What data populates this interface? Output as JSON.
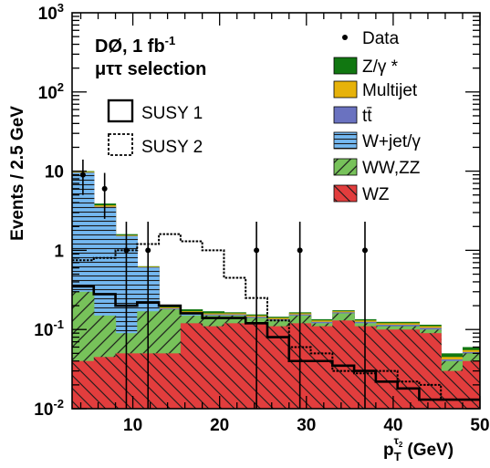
{
  "chart_data": {
    "type": "histogram",
    "y_scale": "log",
    "ylabel": "Events / 2.5 GeV",
    "xlabel": "p",
    "xlabel_sub": "T",
    "xlabel_sup_main": "τ",
    "xlabel_sup_sub": "2",
    "xlabel_unit": "(GeV)",
    "xlim": [
      3,
      50
    ],
    "ylim": [
      0.01,
      1000
    ],
    "x_ticks": [
      "10",
      "20",
      "30",
      "40",
      "50"
    ],
    "x_tick_values": [
      10,
      20,
      30,
      40,
      50
    ],
    "y_ticks": [
      {
        "base": "10",
        "exp": "-2",
        "value": 0.01
      },
      {
        "base": "10",
        "exp": "-1",
        "value": 0.1
      },
      {
        "base": "1",
        "exp": "",
        "value": 1
      },
      {
        "base": "10",
        "exp": "",
        "value": 10
      },
      {
        "base": "10",
        "exp": "2",
        "value": 100
      },
      {
        "base": "10",
        "exp": "3",
        "value": 1000
      }
    ],
    "annotations": {
      "experiment": "DØ, 1 fb",
      "experiment_sup": "-1",
      "selection": "μττ selection"
    },
    "bin_edges": [
      3,
      5.5,
      8,
      10.5,
      13,
      15.5,
      18,
      20.5,
      23,
      25.5,
      28,
      30.5,
      33,
      35.5,
      38,
      40.5,
      43,
      45.5,
      48,
      50
    ],
    "stack_order": [
      "WZ",
      "WW,ZZ",
      "W+jet/γ",
      "tt̄",
      "Multijet",
      "Z/γ *"
    ],
    "stacked_totals": [
      {
        "name": "WZ",
        "values": [
          0.04,
          0.045,
          0.05,
          0.05,
          0.05,
          0.12,
          0.11,
          0.12,
          0.12,
          0.11,
          0.12,
          0.11,
          0.13,
          0.11,
          0.1,
          0.1,
          0.09,
          0.03,
          0.04
        ]
      },
      {
        "name": "WW,ZZ",
        "values": [
          0.3,
          0.15,
          0.09,
          0.17,
          0.18,
          0.15,
          0.15,
          0.15,
          0.14,
          0.13,
          0.15,
          0.12,
          0.16,
          0.12,
          0.11,
          0.11,
          0.1,
          0.04,
          0.05
        ]
      },
      {
        "name": "W+jet/γ",
        "values": [
          9.5,
          3.5,
          1.5,
          0.6,
          0.18,
          0.16,
          0.15,
          0.15,
          0.14,
          0.13,
          0.15,
          0.12,
          0.16,
          0.12,
          0.11,
          0.11,
          0.1,
          0.04,
          0.05
        ]
      },
      {
        "name": "tt̄",
        "values": [
          9.6,
          3.55,
          1.52,
          0.61,
          0.185,
          0.165,
          0.155,
          0.155,
          0.145,
          0.135,
          0.155,
          0.125,
          0.165,
          0.125,
          0.115,
          0.115,
          0.105,
          0.042,
          0.052
        ]
      },
      {
        "name": "Multijet",
        "values": [
          9.8,
          3.7,
          1.55,
          0.62,
          0.19,
          0.17,
          0.16,
          0.16,
          0.15,
          0.14,
          0.16,
          0.13,
          0.17,
          0.13,
          0.12,
          0.12,
          0.11,
          0.045,
          0.055
        ]
      },
      {
        "name": "Z/γ *",
        "values": [
          10,
          3.9,
          1.6,
          0.63,
          0.2,
          0.18,
          0.17,
          0.165,
          0.155,
          0.145,
          0.165,
          0.135,
          0.175,
          0.135,
          0.125,
          0.125,
          0.115,
          0.05,
          0.06
        ]
      }
    ],
    "susy1": {
      "name": "SUSY 1",
      "values": [
        0.35,
        0.28,
        0.2,
        0.22,
        0.2,
        0.16,
        0.14,
        0.14,
        0.12,
        0.08,
        0.04,
        0.04,
        0.035,
        0.03,
        0.022,
        0.018,
        0.013,
        0.013,
        0.013
      ]
    },
    "susy2": {
      "name": "SUSY 2",
      "values": [
        0.75,
        0.8,
        1.0,
        1.2,
        1.6,
        1.3,
        1.0,
        0.45,
        0.25,
        0.13,
        0.06,
        0.05,
        0.03,
        0.028,
        0.03,
        0.022,
        0.02,
        0.013,
        0.013
      ]
    },
    "data": [
      {
        "x": 4.25,
        "y": 9.0,
        "ylo": 5.0,
        "yhi": 14.0
      },
      {
        "x": 6.75,
        "y": 6.0,
        "ylo": 2.5,
        "yhi": 9.5
      },
      {
        "x": 9.25,
        "y": 1.0,
        "ylo": 0.01,
        "yhi": 2.3
      },
      {
        "x": 11.75,
        "y": 1.0,
        "ylo": 0.01,
        "yhi": 2.3
      },
      {
        "x": 24.25,
        "y": 1.0,
        "ylo": 0.01,
        "yhi": 2.3
      },
      {
        "x": 29.25,
        "y": 1.0,
        "ylo": 0.01,
        "yhi": 2.3
      },
      {
        "x": 36.75,
        "y": 1.0,
        "ylo": 0.01,
        "yhi": 2.3
      }
    ],
    "legend": [
      {
        "name": "Data",
        "kind": "marker"
      },
      {
        "name": "Z/γ *",
        "kind": "box",
        "color": "#117711",
        "hatch": false
      },
      {
        "name": "Multijet",
        "kind": "box",
        "color": "#e6b20a",
        "hatch": false
      },
      {
        "name": "tt̄",
        "kind": "box",
        "color": "#6a72c0",
        "hatch": false
      },
      {
        "name": "W+jet/γ",
        "kind": "box",
        "color": "#74b8f0",
        "hatch": "horizontal"
      },
      {
        "name": "WW,ZZ",
        "kind": "box",
        "color": "#77c25a",
        "hatch": "diagonal-up"
      },
      {
        "name": "WZ",
        "kind": "box",
        "color": "#e23d3d",
        "hatch": "diagonal-down"
      }
    ],
    "susy_legend": [
      {
        "name": "SUSY 1",
        "style": "solid"
      },
      {
        "name": "SUSY 2",
        "style": "dashed"
      }
    ],
    "colors": {
      "WZ": "#e23d3d",
      "WW,ZZ": "#77c25a",
      "W+jet/γ": "#74b8f0",
      "tt̄": "#6a72c0",
      "Multijet": "#e6b20a",
      "Z/γ *": "#117711"
    },
    "legend_placement": "top-right",
    "grid": false
  }
}
